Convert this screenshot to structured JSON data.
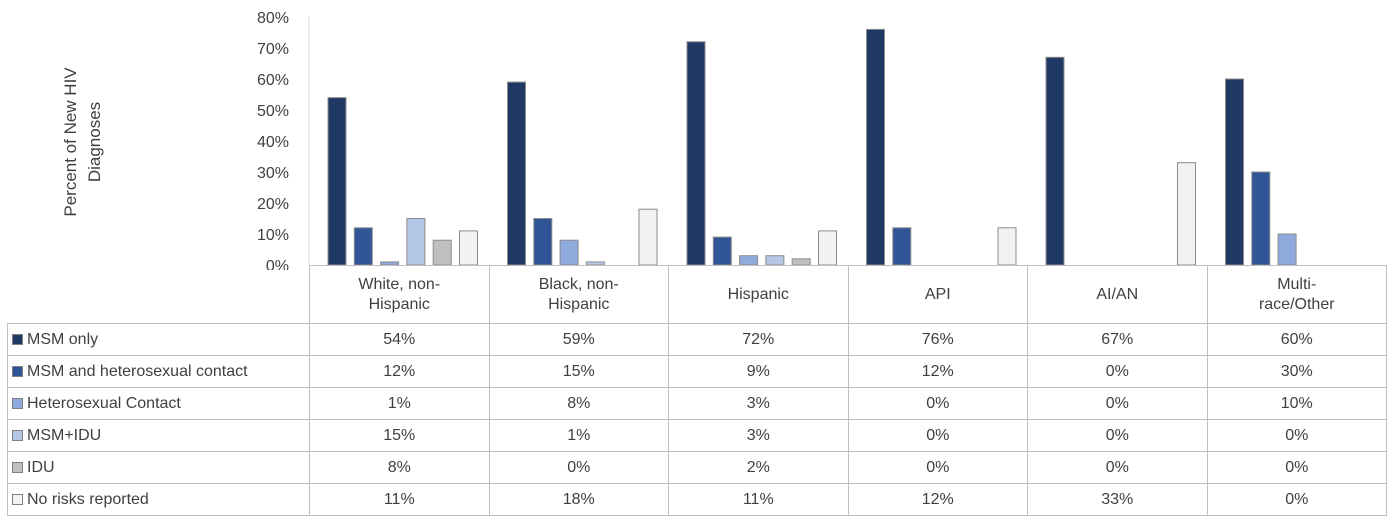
{
  "chart_data": {
    "type": "bar",
    "ylabel": "Percent of New HIV Diagnoses",
    "ylim": [
      0,
      80
    ],
    "y_ticks": [
      "0%",
      "10%",
      "20%",
      "30%",
      "40%",
      "50%",
      "60%",
      "70%",
      "80%"
    ],
    "categories": [
      "White, non-Hispanic",
      "Black, non-Hispanic",
      "Hispanic",
      "API",
      "AI/AN",
      "Multi-race/Other"
    ],
    "category_labels": [
      "White, non-\nHispanic",
      "Black, non-\nHispanic",
      "Hispanic",
      "API",
      "AI/AN",
      "Multi-\nrace/Other"
    ],
    "series": [
      {
        "name": "MSM only",
        "color": "#203864",
        "values": [
          54,
          59,
          72,
          76,
          67,
          60
        ],
        "labels": [
          "54%",
          "59%",
          "72%",
          "76%",
          "67%",
          "60%"
        ]
      },
      {
        "name": "MSM and heterosexual contact",
        "color": "#2f5597",
        "values": [
          12,
          15,
          9,
          12,
          0,
          30
        ],
        "labels": [
          "12%",
          "15%",
          "9%",
          "12%",
          "0%",
          "30%"
        ]
      },
      {
        "name": "Heterosexual Contact",
        "color": "#8faadc",
        "values": [
          1,
          8,
          3,
          0,
          0,
          10
        ],
        "labels": [
          "1%",
          "8%",
          "3%",
          "0%",
          "0%",
          "10%"
        ]
      },
      {
        "name": "MSM+IDU",
        "color": "#b4c7e7",
        "values": [
          15,
          1,
          3,
          0,
          0,
          0
        ],
        "labels": [
          "15%",
          "1%",
          "3%",
          "0%",
          "0%",
          "0%"
        ]
      },
      {
        "name": "IDU",
        "color": "#bfbfbf",
        "values": [
          8,
          0,
          2,
          0,
          0,
          0
        ],
        "labels": [
          "8%",
          "0%",
          "2%",
          "0%",
          "0%",
          "0%"
        ]
      },
      {
        "name": "No risks reported",
        "color": "#f2f2f2",
        "values": [
          11,
          18,
          11,
          12,
          33,
          0
        ],
        "labels": [
          "11%",
          "18%",
          "11%",
          "12%",
          "33%",
          "0%"
        ]
      }
    ],
    "legend": "data-table"
  }
}
